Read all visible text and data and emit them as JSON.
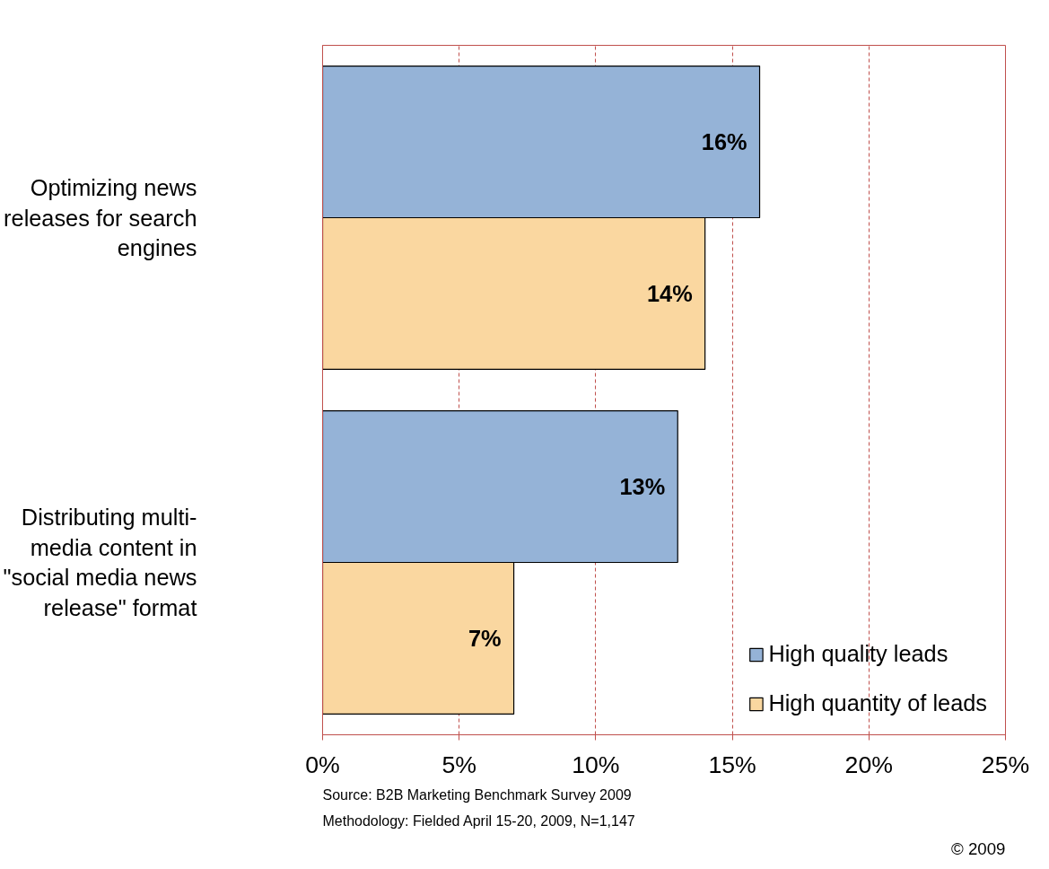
{
  "chart_data": {
    "type": "bar",
    "orientation": "horizontal",
    "categories": [
      "Optimizing news releases for search engines",
      "Distributing multi-media content in \"social media news release\" format"
    ],
    "series": [
      {
        "name": "High quality leads",
        "color": "#95b3d7",
        "values": [
          16,
          13
        ],
        "value_labels": [
          "16%",
          "13%"
        ]
      },
      {
        "name": "High quantity of leads",
        "color": "#fad7a0",
        "values": [
          14,
          7
        ],
        "value_labels": [
          "14%",
          "7%"
        ]
      }
    ],
    "xlim": [
      0,
      25
    ],
    "xticks": [
      {
        "value": 0,
        "label": "0%"
      },
      {
        "value": 5,
        "label": "5%"
      },
      {
        "value": 10,
        "label": "10%"
      },
      {
        "value": 15,
        "label": "15%"
      },
      {
        "value": 20,
        "label": "20%"
      },
      {
        "value": 25,
        "label": "25%"
      }
    ],
    "grid": "x",
    "legend": "bottom right",
    "annotations": [
      "Source: B2B Marketing Benchmark Survey 2009",
      "Methodology: Fielded  April 15-20, 2009, N=1,147",
      "© 2009"
    ]
  }
}
